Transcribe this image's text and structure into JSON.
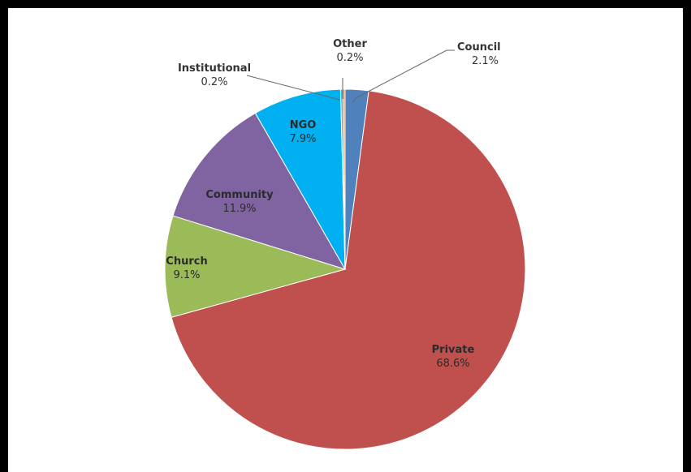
{
  "chart_data": {
    "type": "pie",
    "title": "",
    "slices": [
      {
        "label": "Council",
        "value_text": "2.1%",
        "value": 2.1,
        "color": "#4f81bd"
      },
      {
        "label": "Private",
        "value_text": "68.6%",
        "value": 68.6,
        "color": "#c0504d"
      },
      {
        "label": "Church",
        "value_text": "9.1%",
        "value": 9.1,
        "color": "#9bbb59"
      },
      {
        "label": "Community",
        "value_text": "11.9%",
        "value": 11.9,
        "color": "#8064a2"
      },
      {
        "label": "NGO",
        "value_text": "7.9%",
        "value": 7.9,
        "color": "#00b0f0"
      },
      {
        "label": "Institutional",
        "value_text": "0.2%",
        "value": 0.2,
        "color": "#4bacc6"
      },
      {
        "label": "Other",
        "value_text": "0.2%",
        "value": 0.2,
        "color": "#f79646"
      }
    ],
    "start_angle_deg": 0,
    "direction": "clockwise"
  }
}
